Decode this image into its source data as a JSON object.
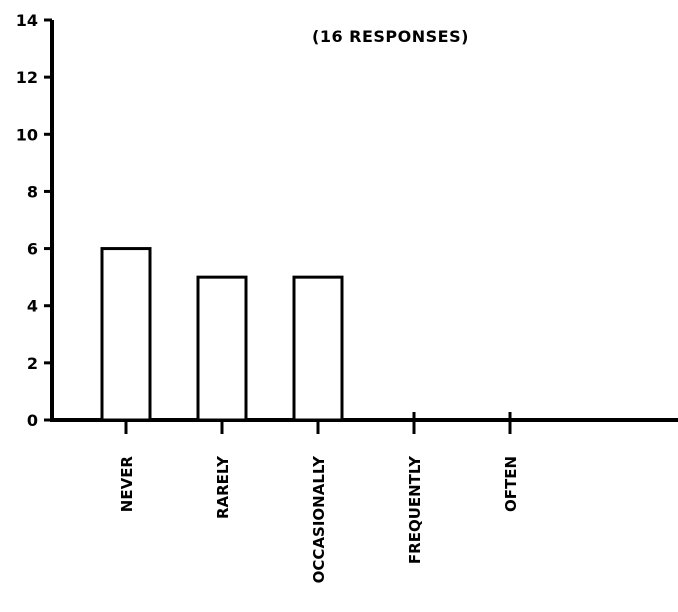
{
  "chart_data": {
    "type": "bar",
    "title": "(16 RESPONSES)",
    "categories": [
      "NEVER",
      "RARELY",
      "OCCASIONALLY",
      "FREQUENTLY",
      "OFTEN"
    ],
    "values": [
      6,
      5,
      5,
      0,
      0
    ],
    "ylim": [
      0,
      14
    ],
    "yticks": [
      0,
      2,
      4,
      6,
      8,
      10,
      12,
      14
    ],
    "xlabel": "",
    "ylabel": "",
    "grid": false,
    "legend": "none",
    "colors": {
      "bar_fill": "#ffffff",
      "bar_stroke": "#000000",
      "axis": "#000000"
    }
  }
}
